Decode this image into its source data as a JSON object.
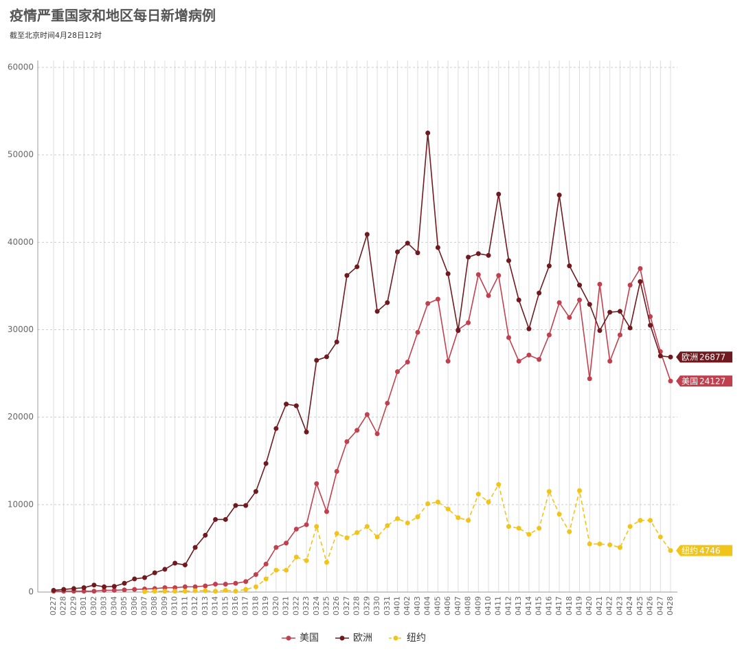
{
  "chart_data": {
    "type": "line",
    "title": "疫情严重国家和地区每日新增病例",
    "subtitle": "截至北京时间4月28日12时",
    "categories": [
      "0227",
      "0228",
      "0229",
      "0301",
      "0302",
      "0303",
      "0304",
      "0305",
      "0306",
      "0307",
      "0308",
      "0309",
      "0310",
      "0311",
      "0312",
      "0313",
      "0314",
      "0315",
      "0316",
      "0317",
      "0318",
      "0319",
      "0320",
      "0321",
      "0322",
      "0323",
      "0324",
      "0325",
      "0326",
      "0327",
      "0328",
      "0329",
      "0330",
      "0331",
      "0401",
      "0402",
      "0403",
      "0404",
      "0405",
      "0406",
      "0407",
      "0408",
      "0409",
      "0410",
      "0411",
      "0412",
      "0413",
      "0414",
      "0415",
      "0416",
      "0417",
      "0418",
      "0419",
      "0420",
      "0421",
      "0422",
      "0423",
      "0424",
      "0425",
      "0426",
      "0427",
      "0428"
    ],
    "series": [
      {
        "name": "美国",
        "color": "#c0404e",
        "dashed": false,
        "values": [
          100,
          100,
          100,
          100,
          100,
          200,
          200,
          250,
          300,
          350,
          400,
          500,
          500,
          600,
          600,
          700,
          900,
          900,
          1000,
          1200,
          2000,
          3200,
          5100,
          5600,
          7200,
          7700,
          12400,
          9200,
          13800,
          17200,
          18500,
          20300,
          18100,
          21600,
          25200,
          26300,
          29700,
          33000,
          33500,
          26400,
          30000,
          30800,
          36300,
          33900,
          36200,
          29100,
          26400,
          27100,
          26600,
          29400,
          33100,
          31400,
          33400,
          24400,
          35200,
          26400,
          29400,
          35100,
          37000,
          31500,
          27500,
          24127
        ]
      },
      {
        "name": "欧洲",
        "color": "#6e1a1f",
        "dashed": false,
        "values": [
          200,
          300,
          400,
          500,
          800,
          600,
          650,
          1000,
          1500,
          1650,
          2200,
          2600,
          3300,
          3100,
          5100,
          6500,
          8300,
          8300,
          9900,
          9900,
          11500,
          14700,
          18700,
          21500,
          21300,
          18300,
          26500,
          26900,
          28600,
          36200,
          37200,
          40900,
          32100,
          33100,
          38900,
          39900,
          38800,
          52500,
          39400,
          36400,
          29900,
          38300,
          38700,
          38500,
          45500,
          37900,
          33400,
          30100,
          34200,
          37300,
          45400,
          37300,
          35100,
          32900,
          29900,
          32000,
          32100,
          30200,
          35500,
          30500,
          27000,
          26877
        ]
      },
      {
        "name": "纽约",
        "color": "#f0c419",
        "dashed": true,
        "values": [
          null,
          null,
          null,
          null,
          null,
          null,
          null,
          null,
          null,
          50,
          100,
          100,
          100,
          100,
          150,
          150,
          100,
          200,
          100,
          300,
          600,
          1500,
          2500,
          2500,
          4000,
          3600,
          7500,
          3400,
          6700,
          6200,
          6800,
          7500,
          6300,
          7600,
          8400,
          7900,
          8600,
          10100,
          10300,
          9500,
          8500,
          8200,
          11200,
          10300,
          12300,
          7500,
          7300,
          6600,
          7300,
          11500,
          8900,
          6900,
          11600,
          5500,
          5500,
          5400,
          5100,
          7500,
          8200,
          8200,
          6300,
          4746
        ]
      }
    ],
    "ylim": [
      0,
      60000
    ],
    "yticks": [
      0,
      10000,
      20000,
      30000,
      40000,
      50000,
      60000
    ],
    "grid": true
  }
}
